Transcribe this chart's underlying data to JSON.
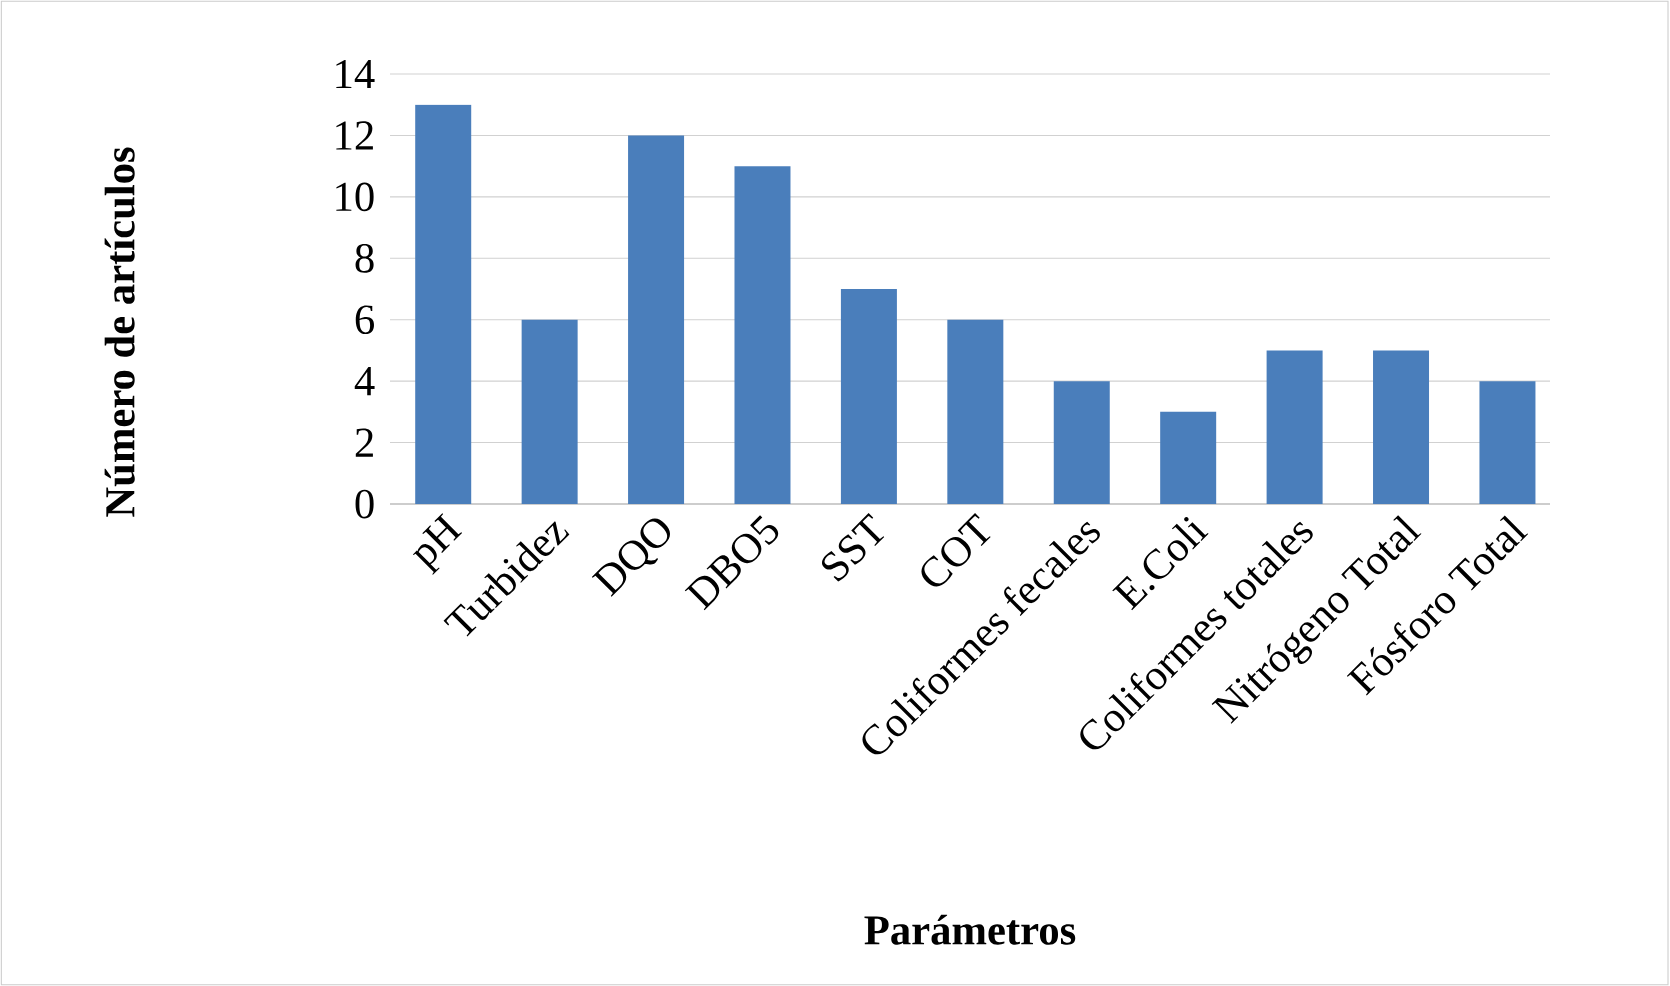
{
  "chart_data": {
    "type": "bar",
    "xlabel": "Parámetros",
    "ylabel": "Número de artículos",
    "categories": [
      "pH",
      "Turbidez",
      "DQO",
      "DBO5",
      "SST",
      "COT",
      "Coliformes fecales",
      "E.Coli",
      "Coliformes totales",
      "Nitrógeno Total",
      "Fósforo Total"
    ],
    "values": [
      13,
      6,
      12,
      11,
      7,
      6,
      4,
      3,
      5,
      5,
      4
    ],
    "color": "#4a7ebb",
    "ylim": [
      0,
      14
    ],
    "yticks": [
      0,
      2,
      4,
      6,
      8,
      10,
      12,
      14
    ],
    "grid": "y"
  }
}
